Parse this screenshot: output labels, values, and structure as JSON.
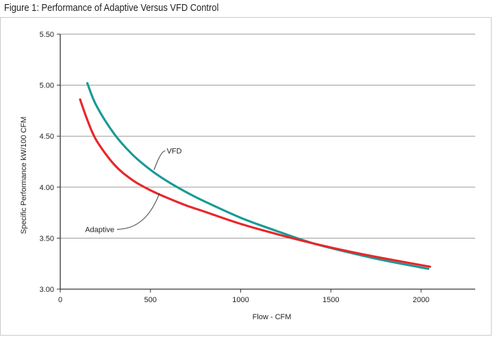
{
  "figure_title": "Figure 1: Performance of Adaptive Versus VFD Control",
  "chart_data": {
    "type": "line",
    "title": "Figure 1: Performance of Adaptive Versus VFD Control",
    "xlabel": "Flow - CFM",
    "ylabel": "Specific Performance  kW/100 CFM",
    "xlim": [
      0,
      2300
    ],
    "ylim": [
      3.0,
      5.5
    ],
    "xticks": [
      0,
      500,
      1000,
      1500,
      2000
    ],
    "yticks": [
      3.0,
      3.5,
      4.0,
      4.5,
      5.0,
      5.5
    ],
    "xtick_labels": [
      "0",
      "500",
      "1000",
      "1500",
      "2000"
    ],
    "ytick_labels": [
      "3.00",
      "3.50",
      "4.00",
      "4.50",
      "5.00",
      "5.50"
    ],
    "grid": "horizontal",
    "series": [
      {
        "name": "VFD",
        "color": "#1a9a96",
        "x": [
          150,
          200,
          300,
          400,
          500,
          600,
          700,
          800,
          1000,
          1200,
          1400,
          1600,
          1800,
          2040
        ],
        "y": [
          5.02,
          4.8,
          4.52,
          4.32,
          4.17,
          4.05,
          3.95,
          3.86,
          3.7,
          3.57,
          3.45,
          3.36,
          3.28,
          3.2
        ]
      },
      {
        "name": "Adaptive",
        "color": "#e8262b",
        "x": [
          110,
          150,
          200,
          300,
          400,
          500,
          600,
          700,
          800,
          1000,
          1200,
          1400,
          1600,
          1800,
          2050
        ],
        "y": [
          4.86,
          4.66,
          4.46,
          4.22,
          4.07,
          3.97,
          3.89,
          3.82,
          3.76,
          3.64,
          3.54,
          3.45,
          3.37,
          3.3,
          3.22
        ]
      }
    ],
    "annotations": [
      {
        "text": "VFD",
        "target_series": "VFD",
        "target_x": 520,
        "target_y": 4.17,
        "text_x": 590,
        "text_y": 4.33
      },
      {
        "text": "Adaptive",
        "target_series": "Adaptive",
        "target_x": 550,
        "target_y": 3.94,
        "text_x": 300,
        "text_y": 3.56
      }
    ]
  }
}
